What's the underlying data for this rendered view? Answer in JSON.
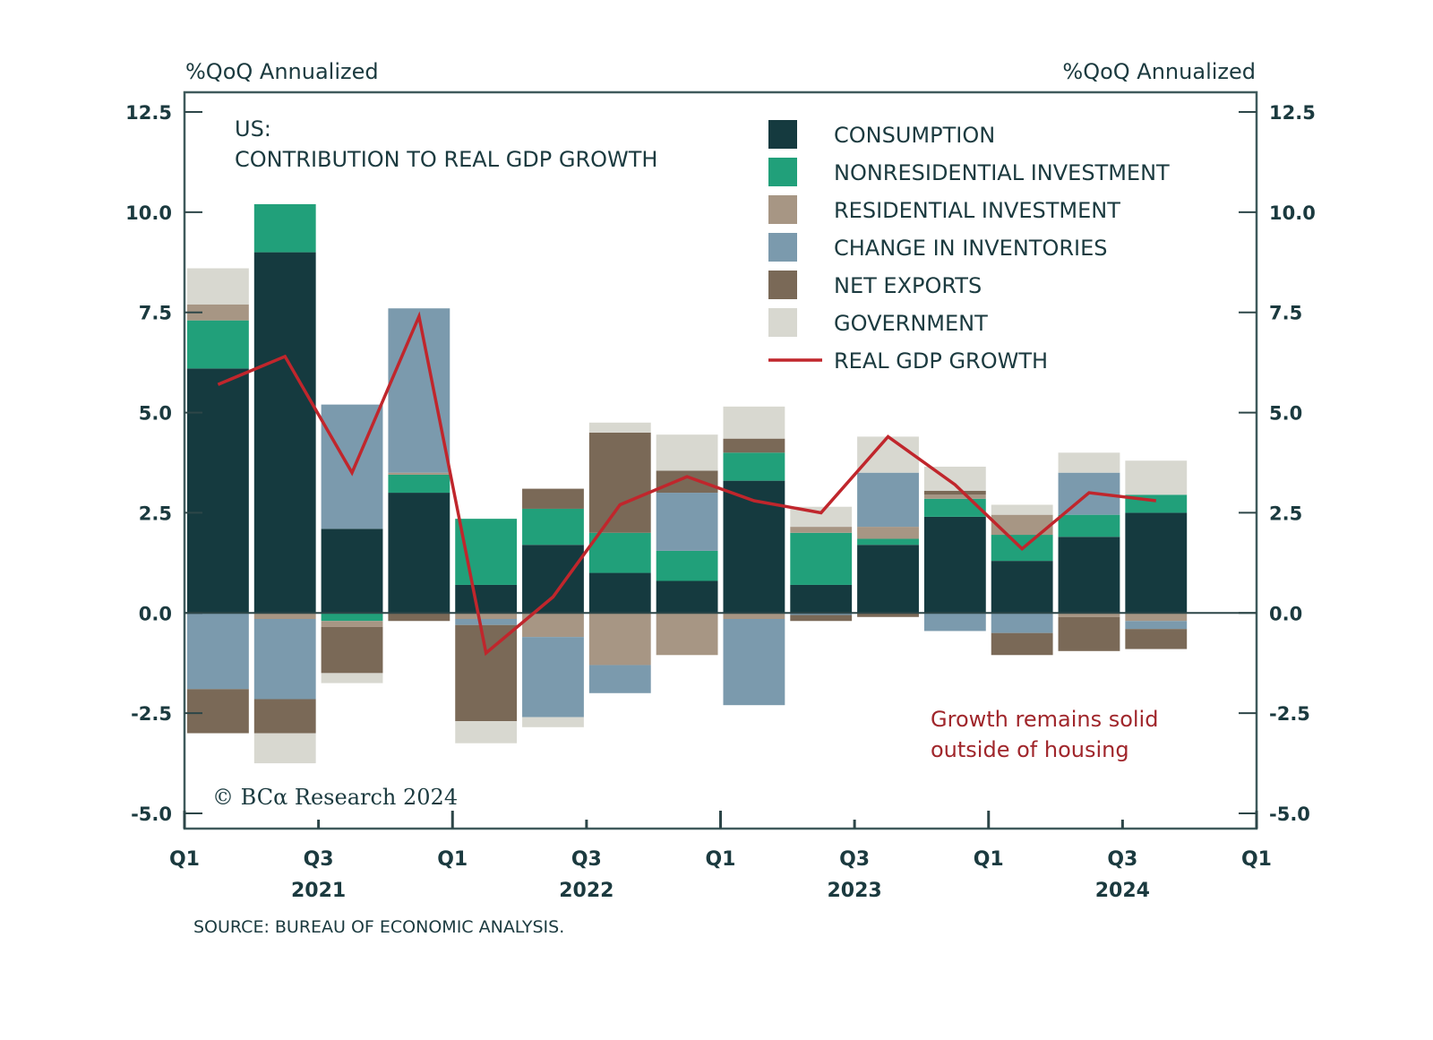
{
  "chart_data": {
    "type": "bar",
    "stacked": true,
    "title": "US:",
    "subtitle": "CONTRIBUTION TO REAL GDP GROWTH",
    "ylabel_left": "%QoQ Annualized",
    "ylabel_right": "%QoQ Annualized",
    "ylim": [
      -5.0,
      12.5
    ],
    "yticks": [
      "12.5",
      "10.0",
      "7.5",
      "5.0",
      "2.5",
      "0.0",
      "-2.5",
      "-5.0"
    ],
    "ytick_values": [
      12.5,
      10.0,
      7.5,
      5.0,
      2.5,
      0.0,
      -2.5,
      -5.0
    ],
    "categories": [
      "2021Q1",
      "2021Q2",
      "2021Q3",
      "2021Q4",
      "2022Q1",
      "2022Q2",
      "2022Q3",
      "2022Q4",
      "2023Q1",
      "2023Q2",
      "2023Q3",
      "2023Q4",
      "2024Q1",
      "2024Q2",
      "2024Q3"
    ],
    "xtick_labels": [
      {
        "quarter": "Q1",
        "year": "",
        "index": 0
      },
      {
        "quarter": "Q3",
        "year": "2021",
        "index": 2
      },
      {
        "quarter": "Q1",
        "year": "",
        "index": 4
      },
      {
        "quarter": "Q3",
        "year": "2022",
        "index": 6
      },
      {
        "quarter": "Q1",
        "year": "",
        "index": 8
      },
      {
        "quarter": "Q3",
        "year": "2023",
        "index": 10
      },
      {
        "quarter": "Q1",
        "year": "",
        "index": 12
      },
      {
        "quarter": "Q3",
        "year": "2024",
        "index": 14
      },
      {
        "quarter": "Q1",
        "year": "",
        "index": 16
      }
    ],
    "series": [
      {
        "name": "CONSUMPTION",
        "color": "#153a3f",
        "values": [
          6.1,
          9.0,
          2.1,
          3.0,
          0.7,
          1.7,
          1.0,
          0.8,
          3.3,
          0.7,
          1.7,
          2.4,
          1.3,
          1.9,
          2.5
        ]
      },
      {
        "name": "NONRESIDENTIAL INVESTMENT",
        "color": "#21a07a",
        "values": [
          1.2,
          1.2,
          -0.2,
          0.45,
          1.65,
          0.9,
          1.0,
          0.75,
          0.7,
          1.3,
          0.15,
          0.45,
          0.65,
          0.55,
          0.45
        ]
      },
      {
        "name": "RESIDENTIAL INVESTMENT",
        "color": "#a79684",
        "values": [
          0.4,
          -0.15,
          -0.15,
          0.05,
          -0.15,
          -0.6,
          -1.3,
          -1.05,
          -0.15,
          0.15,
          0.3,
          0.1,
          0.5,
          -0.1,
          -0.2
        ]
      },
      {
        "name": "CHANGE IN INVENTORIES",
        "color": "#7b9aad",
        "values": [
          -1.9,
          -2.0,
          3.1,
          4.1,
          -0.15,
          -2.0,
          -0.7,
          1.45,
          -2.15,
          -0.05,
          1.35,
          -0.45,
          -0.5,
          1.05,
          -0.2
        ]
      },
      {
        "name": "NET EXPORTS",
        "color": "#7a6957",
        "values": [
          -1.1,
          -0.85,
          -1.15,
          -0.2,
          -2.4,
          0.5,
          2.5,
          0.55,
          0.35,
          -0.15,
          -0.1,
          0.1,
          -0.55,
          -0.85,
          -0.5
        ]
      },
      {
        "name": "GOVERNMENT",
        "color": "#d8d8d0",
        "values": [
          0.9,
          -0.75,
          -0.25,
          0.0,
          -0.55,
          -0.25,
          0.25,
          0.9,
          0.8,
          0.5,
          0.9,
          0.6,
          0.25,
          0.5,
          0.85
        ]
      }
    ],
    "line_series": {
      "name": "REAL GDP GROWTH",
      "color": "#c0262c",
      "values": [
        5.7,
        6.4,
        3.5,
        7.4,
        -1.0,
        0.4,
        2.7,
        3.4,
        2.8,
        2.5,
        4.4,
        3.2,
        1.6,
        3.0,
        2.8
      ]
    },
    "legend": [
      "CONSUMPTION",
      "NONRESIDENTIAL INVESTMENT",
      "RESIDENTIAL INVESTMENT",
      "CHANGE IN INVENTORIES",
      "NET EXPORTS",
      "GOVERNMENT",
      "REAL GDP GROWTH"
    ],
    "legend_position": "top-right",
    "annotation": [
      "Growth remains solid",
      "outside of housing"
    ],
    "grid": false
  },
  "copyright": "© BCα Research 2024",
  "source": "SOURCE: BUREAU OF ECONOMIC ANALYSIS.",
  "colors": {
    "axis": "#3f5a5c",
    "text": "#1b3a3f",
    "annotation": "#a0262b"
  }
}
